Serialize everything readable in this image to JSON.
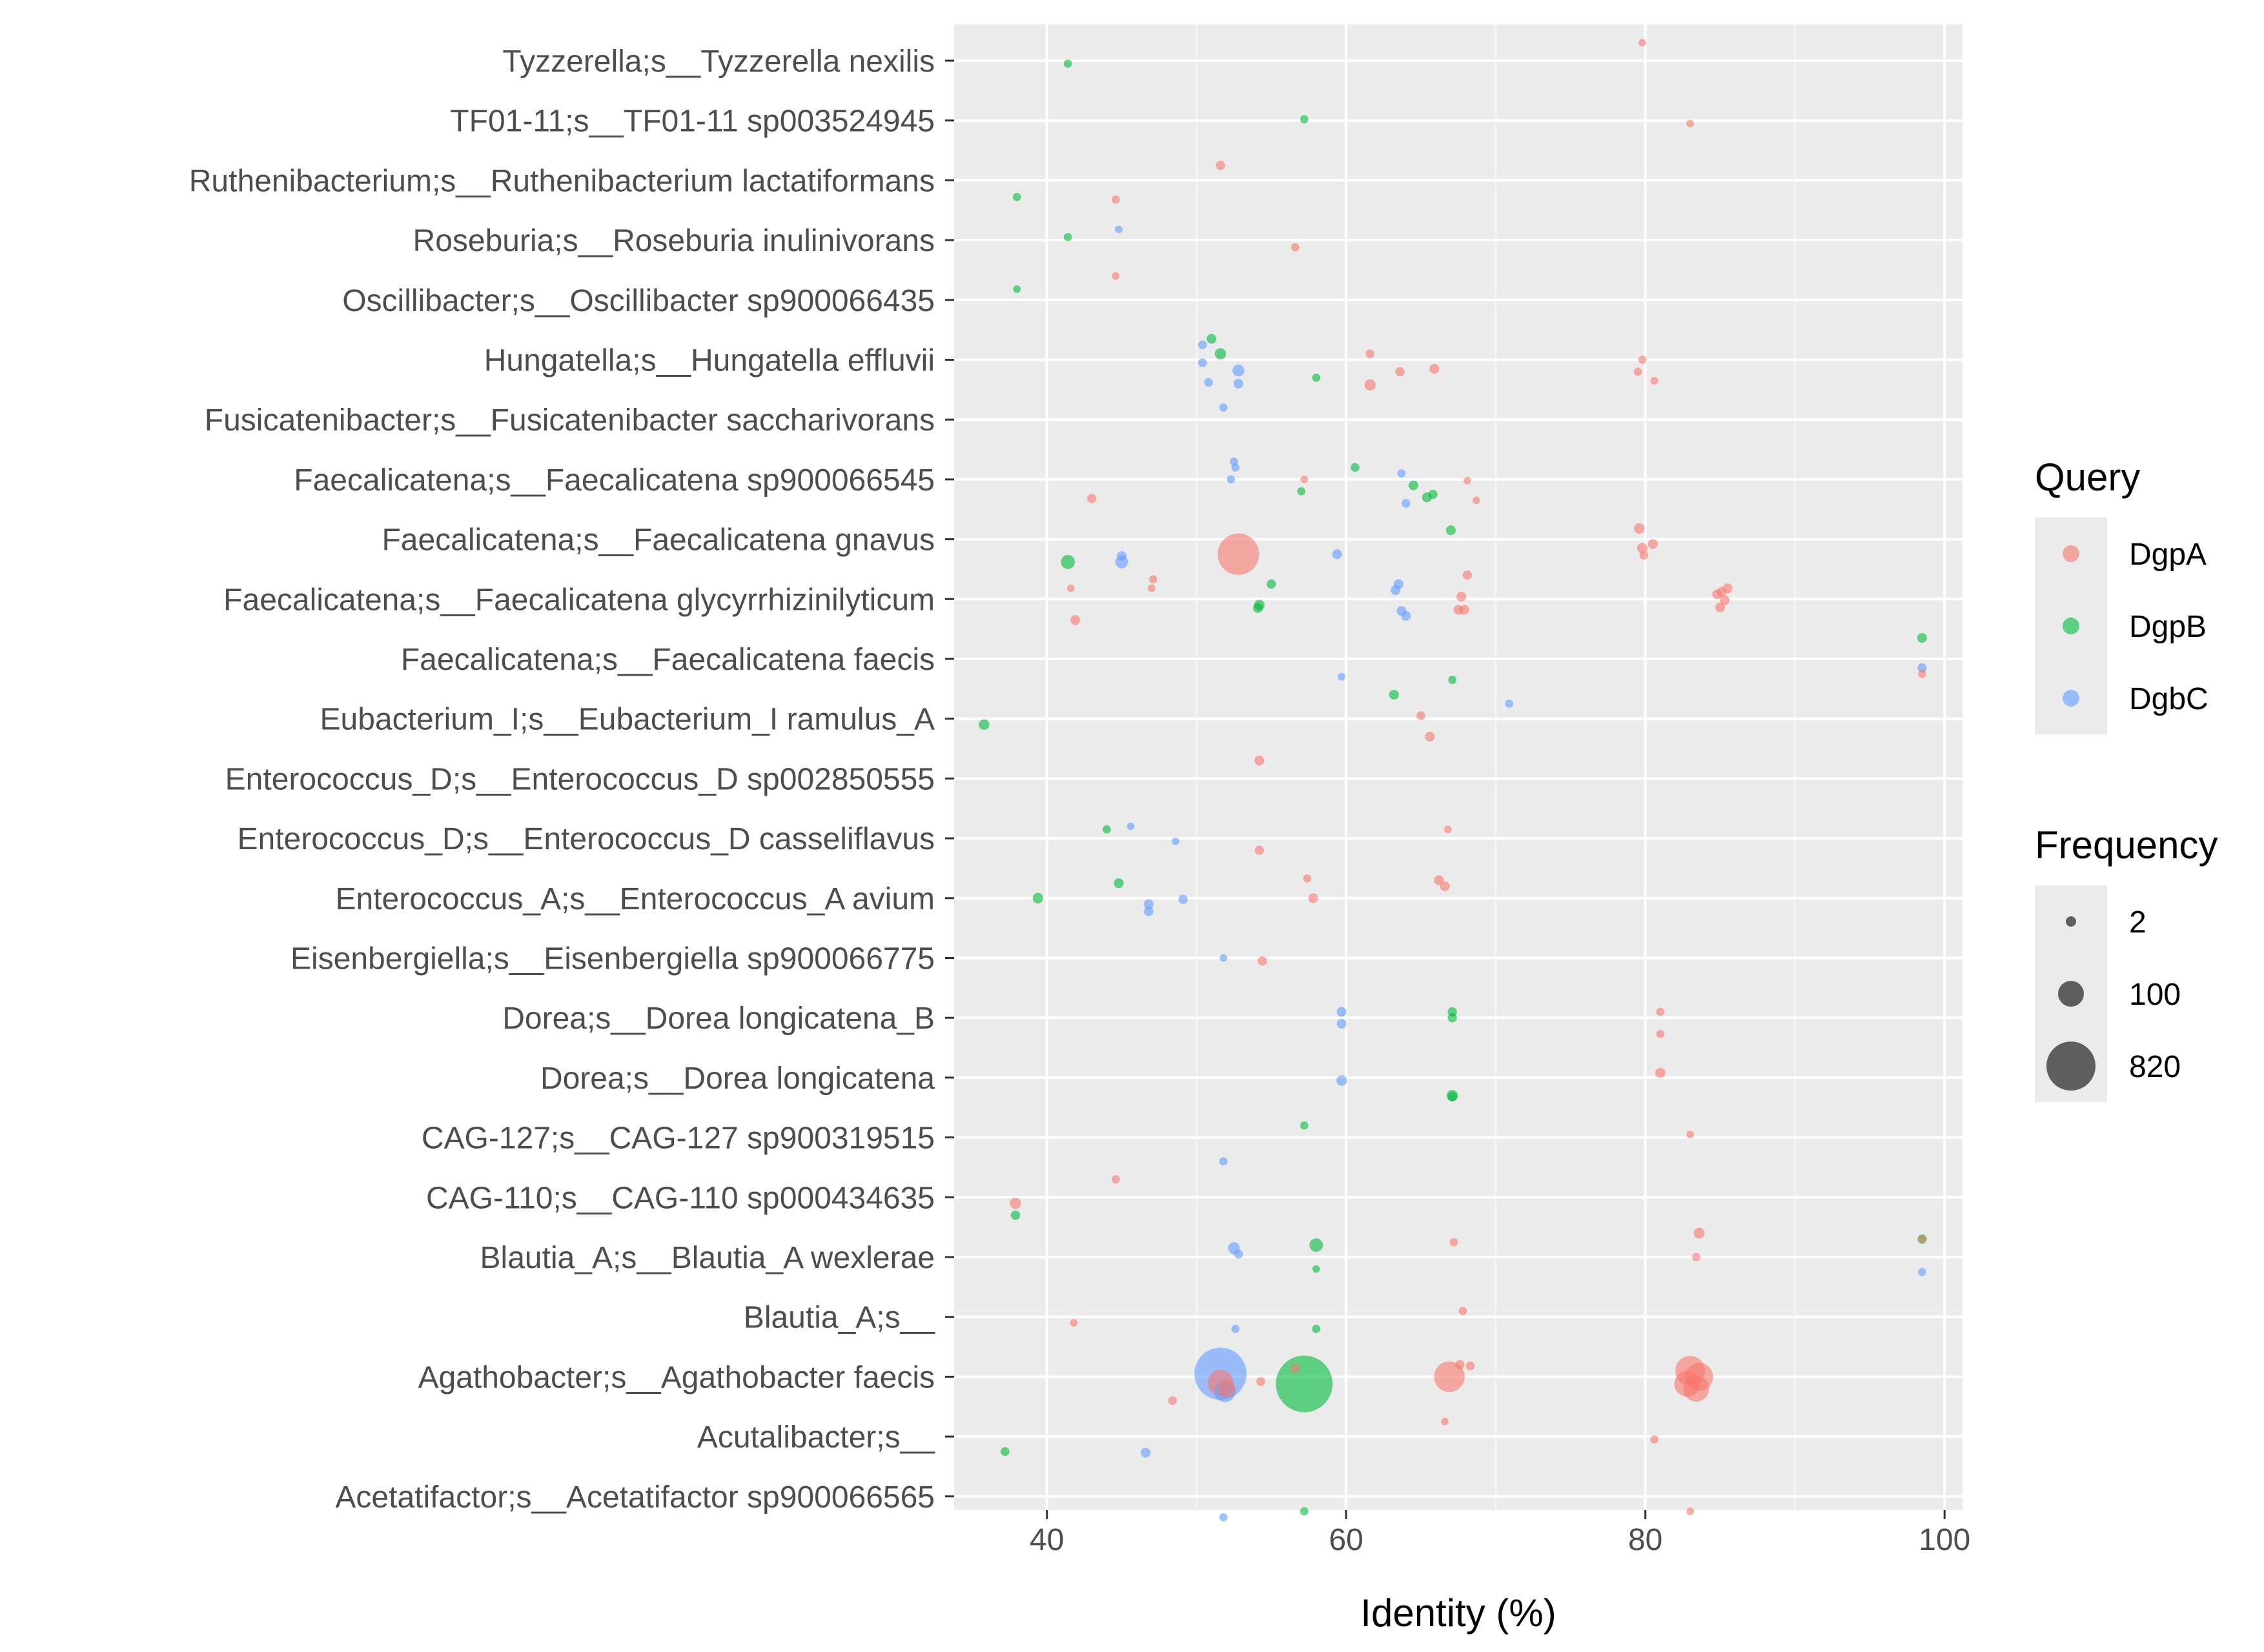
{
  "chart_data": {
    "type": "scatter",
    "xlabel": "Identity (%)",
    "xlim": [
      33.8,
      101.2
    ],
    "xticks": [
      40,
      60,
      80,
      100
    ],
    "grid": true,
    "legend_placement": "right",
    "categories": [
      "Tyzzerella;s__Tyzzerella nexilis",
      "TF01-11;s__TF01-11 sp003524945",
      "Ruthenibacterium;s__Ruthenibacterium lactatiformans",
      "Roseburia;s__Roseburia inulinivorans",
      "Oscillibacter;s__Oscillibacter sp900066435",
      "Hungatella;s__Hungatella effluvii",
      "Fusicatenibacter;s__Fusicatenibacter saccharivorans",
      "Faecalicatena;s__Faecalicatena sp900066545",
      "Faecalicatena;s__Faecalicatena gnavus",
      "Faecalicatena;s__Faecalicatena glycyrrhizinilyticum",
      "Faecalicatena;s__Faecalicatena faecis",
      "Eubacterium_I;s__Eubacterium_I ramulus_A",
      "Enterococcus_D;s__Enterococcus_D sp002850555",
      "Enterococcus_D;s__Enterococcus_D casseliflavus",
      "Enterococcus_A;s__Enterococcus_A avium",
      "Eisenbergiella;s__Eisenbergiella sp900066775",
      "Dorea;s__Dorea longicatena_B",
      "Dorea;s__Dorea longicatena",
      "CAG-127;s__CAG-127 sp900319515",
      "CAG-110;s__CAG-110 sp000434635",
      "Blautia_A;s__Blautia_A wexlerae",
      "Blautia_A;s__",
      "Agathobacter;s__Agathobacter faecis",
      "Acutalibacter;s__",
      "Acetatifactor;s__Acetatifactor sp900066565"
    ],
    "legend": {
      "query_title": "Query",
      "query_items": [
        {
          "name": "DgpA",
          "color": "#F8766D"
        },
        {
          "name": "DgpB",
          "color": "#00BA38"
        },
        {
          "name": "DgbC",
          "color": "#619CFF"
        }
      ],
      "frequency_title": "Frequency",
      "frequency_items": [
        {
          "label": "2",
          "freq": 2
        },
        {
          "label": "100",
          "freq": 100
        },
        {
          "label": "820",
          "freq": 820
        }
      ]
    },
    "series": [
      {
        "name": "DgpA",
        "color": "#F8766D",
        "points": [
          {
            "x": 79.8,
            "y": 0,
            "f": 2,
            "j": -0.3
          },
          {
            "x": 83.0,
            "y": 1,
            "f": 2,
            "j": 0.05
          },
          {
            "x": 51.6,
            "y": 2,
            "f": 5,
            "j": -0.25
          },
          {
            "x": 44.6,
            "y": 2,
            "f": 3,
            "j": 0.32
          },
          {
            "x": 56.6,
            "y": 3,
            "f": 3,
            "j": 0.12
          },
          {
            "x": 44.6,
            "y": 4,
            "f": 2,
            "j": -0.4
          },
          {
            "x": 61.6,
            "y": 5,
            "f": 4,
            "j": -0.1
          },
          {
            "x": 63.6,
            "y": 5,
            "f": 5,
            "j": 0.2
          },
          {
            "x": 65.9,
            "y": 5,
            "f": 6,
            "j": 0.15
          },
          {
            "x": 61.6,
            "y": 5,
            "f": 10,
            "j": 0.42
          },
          {
            "x": 79.8,
            "y": 5,
            "f": 3,
            "j": 0.0
          },
          {
            "x": 79.5,
            "y": 5,
            "f": 3,
            "j": 0.2
          },
          {
            "x": 80.6,
            "y": 5,
            "f": 2,
            "j": 0.35
          },
          {
            "x": 57.2,
            "y": 7,
            "f": 2,
            "j": 0.0
          },
          {
            "x": 68.1,
            "y": 7,
            "f": 2,
            "j": 0.02
          },
          {
            "x": 43.0,
            "y": 7,
            "f": 5,
            "j": 0.32
          },
          {
            "x": 68.7,
            "y": 7,
            "f": 2,
            "j": 0.35
          },
          {
            "x": 79.6,
            "y": 8,
            "f": 8,
            "j": -0.18
          },
          {
            "x": 80.5,
            "y": 8,
            "f": 6,
            "j": 0.08
          },
          {
            "x": 79.8,
            "y": 8,
            "f": 8,
            "j": 0.15
          },
          {
            "x": 79.9,
            "y": 8,
            "f": 4,
            "j": 0.27
          },
          {
            "x": 52.8,
            "y": 8,
            "f": 300,
            "j": 0.25
          },
          {
            "x": 68.1,
            "y": 9,
            "f": 5,
            "j": -0.4
          },
          {
            "x": 47.1,
            "y": 9,
            "f": 3,
            "j": -0.33
          },
          {
            "x": 47.0,
            "y": 9,
            "f": 2,
            "j": -0.18
          },
          {
            "x": 41.6,
            "y": 9,
            "f": 2,
            "j": -0.18
          },
          {
            "x": 67.7,
            "y": 9,
            "f": 6,
            "j": -0.04
          },
          {
            "x": 85.1,
            "y": 9,
            "f": 6,
            "j": -0.12
          },
          {
            "x": 85.5,
            "y": 9,
            "f": 6,
            "j": -0.18
          },
          {
            "x": 84.8,
            "y": 9,
            "f": 6,
            "j": -0.08
          },
          {
            "x": 85.3,
            "y": 9,
            "f": 6,
            "j": 0.02
          },
          {
            "x": 85.0,
            "y": 9,
            "f": 6,
            "j": 0.14
          },
          {
            "x": 67.5,
            "y": 9,
            "f": 6,
            "j": 0.18
          },
          {
            "x": 67.9,
            "y": 9,
            "f": 6,
            "j": 0.18
          },
          {
            "x": 41.9,
            "y": 9,
            "f": 6,
            "j": 0.35
          },
          {
            "x": 98.5,
            "y": 10,
            "f": 3,
            "j": 0.25
          },
          {
            "x": 65.0,
            "y": 11,
            "f": 4,
            "j": -0.05
          },
          {
            "x": 65.6,
            "y": 11,
            "f": 6,
            "j": 0.3
          },
          {
            "x": 54.2,
            "y": 12,
            "f": 6,
            "j": -0.3
          },
          {
            "x": 66.8,
            "y": 13,
            "f": 2,
            "j": -0.15
          },
          {
            "x": 54.2,
            "y": 13,
            "f": 5,
            "j": 0.2
          },
          {
            "x": 57.4,
            "y": 14,
            "f": 3,
            "j": -0.33
          },
          {
            "x": 66.2,
            "y": 14,
            "f": 6,
            "j": -0.3
          },
          {
            "x": 66.6,
            "y": 14,
            "f": 6,
            "j": -0.2
          },
          {
            "x": 57.8,
            "y": 14,
            "f": 6,
            "j": 0.0
          },
          {
            "x": 54.4,
            "y": 15,
            "f": 5,
            "j": 0.05
          },
          {
            "x": 81.0,
            "y": 16,
            "f": 3,
            "j": -0.1
          },
          {
            "x": 81.0,
            "y": 16,
            "f": 3,
            "j": 0.27
          },
          {
            "x": 81.0,
            "y": 17,
            "f": 7,
            "j": -0.08
          },
          {
            "x": 83.0,
            "y": 18,
            "f": 2,
            "j": -0.05
          },
          {
            "x": 44.6,
            "y": 19,
            "f": 3,
            "j": -0.3
          },
          {
            "x": 37.9,
            "y": 19,
            "f": 10,
            "j": 0.1
          },
          {
            "x": 83.6,
            "y": 20,
            "f": 9,
            "j": -0.4
          },
          {
            "x": 67.2,
            "y": 20,
            "f": 3,
            "j": -0.25
          },
          {
            "x": 98.5,
            "y": 20,
            "f": 2,
            "j": -0.3
          },
          {
            "x": 83.4,
            "y": 20,
            "f": 3,
            "j": 0.0
          },
          {
            "x": 41.8,
            "y": 21,
            "f": 2,
            "j": 0.1
          },
          {
            "x": 67.8,
            "y": 21,
            "f": 3,
            "j": -0.1
          },
          {
            "x": 67.6,
            "y": 22,
            "f": 5,
            "j": -0.2
          },
          {
            "x": 68.3,
            "y": 22,
            "f": 4,
            "j": -0.18
          },
          {
            "x": 66.9,
            "y": 22,
            "f": 150,
            "j": 0.0
          },
          {
            "x": 56.6,
            "y": 22,
            "f": 5,
            "j": -0.14
          },
          {
            "x": 54.3,
            "y": 22,
            "f": 4,
            "j": 0.08
          },
          {
            "x": 51.6,
            "y": 22,
            "f": 100,
            "j": 0.1
          },
          {
            "x": 52.0,
            "y": 22,
            "f": 40,
            "j": 0.2
          },
          {
            "x": 83.0,
            "y": 22,
            "f": 140,
            "j": -0.1
          },
          {
            "x": 83.6,
            "y": 22,
            "f": 120,
            "j": 0.0
          },
          {
            "x": 82.8,
            "y": 22,
            "f": 100,
            "j": 0.12
          },
          {
            "x": 83.4,
            "y": 22,
            "f": 100,
            "j": 0.2
          },
          {
            "x": 48.4,
            "y": 22,
            "f": 4,
            "j": 0.4
          },
          {
            "x": 66.6,
            "y": 23,
            "f": 2,
            "j": -0.25
          },
          {
            "x": 80.6,
            "y": 23,
            "f": 3,
            "j": 0.05
          },
          {
            "x": 83.0,
            "y": 24,
            "f": 2,
            "j": 0.25
          }
        ]
      },
      {
        "name": "DgpB",
        "color": "#00BA38",
        "points": [
          {
            "x": 41.4,
            "y": 0,
            "f": 3,
            "j": 0.05
          },
          {
            "x": 57.2,
            "y": 1,
            "f": 3,
            "j": -0.02
          },
          {
            "x": 38.0,
            "y": 2,
            "f": 3,
            "j": 0.28
          },
          {
            "x": 41.4,
            "y": 3,
            "f": 3,
            "j": -0.05
          },
          {
            "x": 38.0,
            "y": 4,
            "f": 2,
            "j": -0.18
          },
          {
            "x": 51.0,
            "y": 5,
            "f": 6,
            "j": -0.35
          },
          {
            "x": 51.6,
            "y": 5,
            "f": 10,
            "j": -0.1
          },
          {
            "x": 58.0,
            "y": 5,
            "f": 3,
            "j": 0.3
          },
          {
            "x": 60.6,
            "y": 7,
            "f": 4,
            "j": -0.2
          },
          {
            "x": 64.5,
            "y": 7,
            "f": 6,
            "j": 0.1
          },
          {
            "x": 65.4,
            "y": 7,
            "f": 6,
            "j": 0.3
          },
          {
            "x": 65.8,
            "y": 7,
            "f": 5,
            "j": 0.25
          },
          {
            "x": 57.0,
            "y": 7,
            "f": 3,
            "j": 0.2
          },
          {
            "x": 67.0,
            "y": 8,
            "f": 6,
            "j": -0.15
          },
          {
            "x": 41.4,
            "y": 8,
            "f": 20,
            "j": 0.38
          },
          {
            "x": 55.0,
            "y": 9,
            "f": 5,
            "j": -0.25
          },
          {
            "x": 54.2,
            "y": 9,
            "f": 8,
            "j": 0.1
          },
          {
            "x": 54.1,
            "y": 9,
            "f": 6,
            "j": 0.15
          },
          {
            "x": 98.5,
            "y": 10,
            "f": 6,
            "j": -0.35
          },
          {
            "x": 67.1,
            "y": 11,
            "f": 3,
            "j": -0.65
          },
          {
            "x": 63.2,
            "y": 11,
            "f": 6,
            "j": -0.4
          },
          {
            "x": 35.8,
            "y": 11,
            "f": 8,
            "j": 0.1
          },
          {
            "x": 44.0,
            "y": 13,
            "f": 3,
            "j": -0.15
          },
          {
            "x": 44.8,
            "y": 14,
            "f": 6,
            "j": -0.25
          },
          {
            "x": 39.4,
            "y": 14,
            "f": 8,
            "j": 0.0
          },
          {
            "x": 67.1,
            "y": 16,
            "f": 5,
            "j": -0.1
          },
          {
            "x": 67.1,
            "y": 16,
            "f": 5,
            "j": 0.0
          },
          {
            "x": 67.1,
            "y": 17,
            "f": 10,
            "j": 0.3
          },
          {
            "x": 67.1,
            "y": 17,
            "f": 5,
            "j": 0.32
          },
          {
            "x": 57.2,
            "y": 18,
            "f": 3,
            "j": -0.2
          },
          {
            "x": 37.9,
            "y": 19,
            "f": 5,
            "j": 0.3
          },
          {
            "x": 58.0,
            "y": 20,
            "f": 18,
            "j": -0.2
          },
          {
            "x": 58.0,
            "y": 20,
            "f": 2,
            "j": 0.2
          },
          {
            "x": 98.5,
            "y": 20,
            "f": 5,
            "j": -0.3
          },
          {
            "x": 58.0,
            "y": 21,
            "f": 3,
            "j": 0.2
          },
          {
            "x": 57.2,
            "y": 22,
            "f": 600,
            "j": 0.12
          },
          {
            "x": 37.2,
            "y": 23,
            "f": 4,
            "j": 0.25
          },
          {
            "x": 57.2,
            "y": 24,
            "f": 3,
            "j": 0.25
          }
        ]
      },
      {
        "name": "DgbC",
        "color": "#619CFF",
        "points": [
          {
            "x": 44.8,
            "y": 3,
            "f": 2,
            "j": -0.18
          },
          {
            "x": 50.4,
            "y": 5,
            "f": 4,
            "j": -0.25
          },
          {
            "x": 50.4,
            "y": 5,
            "f": 4,
            "j": 0.05
          },
          {
            "x": 52.8,
            "y": 5,
            "f": 12,
            "j": 0.18
          },
          {
            "x": 52.8,
            "y": 5,
            "f": 6,
            "j": 0.4
          },
          {
            "x": 50.8,
            "y": 5,
            "f": 4,
            "j": 0.38
          },
          {
            "x": 51.8,
            "y": 6,
            "f": 3,
            "j": -0.2
          },
          {
            "x": 52.5,
            "y": 7,
            "f": 3,
            "j": -0.3
          },
          {
            "x": 52.6,
            "y": 7,
            "f": 3,
            "j": -0.2
          },
          {
            "x": 52.3,
            "y": 7,
            "f": 3,
            "j": 0.0
          },
          {
            "x": 63.7,
            "y": 7,
            "f": 3,
            "j": -0.1
          },
          {
            "x": 64.0,
            "y": 7,
            "f": 4,
            "j": 0.4
          },
          {
            "x": 45.0,
            "y": 8,
            "f": 6,
            "j": 0.28
          },
          {
            "x": 45.0,
            "y": 8,
            "f": 15,
            "j": 0.38
          },
          {
            "x": 59.4,
            "y": 8,
            "f": 6,
            "j": 0.25
          },
          {
            "x": 63.5,
            "y": 9,
            "f": 6,
            "j": -0.25
          },
          {
            "x": 63.3,
            "y": 9,
            "f": 6,
            "j": -0.15
          },
          {
            "x": 63.7,
            "y": 9,
            "f": 6,
            "j": 0.2
          },
          {
            "x": 64.0,
            "y": 9,
            "f": 6,
            "j": 0.28
          },
          {
            "x": 98.5,
            "y": 10,
            "f": 5,
            "j": 0.15
          },
          {
            "x": 59.7,
            "y": 11,
            "f": 2,
            "j": -0.7
          },
          {
            "x": 70.9,
            "y": 11,
            "f": 3,
            "j": -0.25
          },
          {
            "x": 45.6,
            "y": 13,
            "f": 2,
            "j": -0.2
          },
          {
            "x": 48.6,
            "y": 13,
            "f": 2,
            "j": 0.05
          },
          {
            "x": 49.1,
            "y": 14,
            "f": 5,
            "j": 0.02
          },
          {
            "x": 46.8,
            "y": 14,
            "f": 6,
            "j": 0.1
          },
          {
            "x": 46.8,
            "y": 14,
            "f": 6,
            "j": 0.22
          },
          {
            "x": 51.8,
            "y": 15,
            "f": 2,
            "j": 0.0
          },
          {
            "x": 59.7,
            "y": 16,
            "f": 6,
            "j": -0.1
          },
          {
            "x": 59.7,
            "y": 16,
            "f": 6,
            "j": 0.1
          },
          {
            "x": 59.7,
            "y": 17,
            "f": 8,
            "j": 0.05
          },
          {
            "x": 51.8,
            "y": 18,
            "f": 3,
            "j": 0.4
          },
          {
            "x": 52.5,
            "y": 20,
            "f": 12,
            "j": -0.15
          },
          {
            "x": 52.8,
            "y": 20,
            "f": 4,
            "j": -0.05
          },
          {
            "x": 98.5,
            "y": 20,
            "f": 3,
            "j": 0.25
          },
          {
            "x": 52.6,
            "y": 21,
            "f": 3,
            "j": 0.2
          },
          {
            "x": 51.6,
            "y": 22,
            "f": 500,
            "j": -0.05
          },
          {
            "x": 51.9,
            "y": 22,
            "f": 60,
            "j": 0.25
          },
          {
            "x": 46.6,
            "y": 23,
            "f": 6,
            "j": 0.27
          },
          {
            "x": 51.8,
            "y": 24,
            "f": 3,
            "j": 0.35
          }
        ]
      }
    ]
  }
}
